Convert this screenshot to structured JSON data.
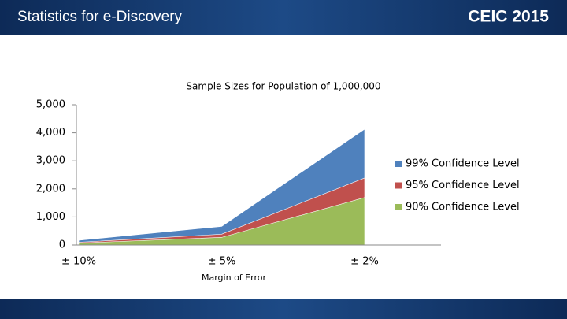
{
  "header": {
    "title": "Statistics for e-Discovery",
    "logo": "CEIC 2015"
  },
  "chart_data": {
    "type": "area",
    "title": "Sample Sizes for Population of 1,000,000",
    "x_label": "Margin of Error",
    "categories": [
      "± 10%",
      "± 5%",
      "± 2%"
    ],
    "series": [
      {
        "name": "99% Confidence Level",
        "color": "#4f81bd",
        "values": [
          166,
          663,
          4130
        ]
      },
      {
        "name": "95% Confidence Level",
        "color": "#c0504d",
        "values": [
          96,
          384,
          2390
        ]
      },
      {
        "name": "90% Confidence Level",
        "color": "#9bbb59",
        "values": [
          68,
          271,
          1691
        ]
      }
    ],
    "ylim": [
      0,
      5000
    ],
    "yticks": [
      0,
      {
        "value": 1000,
        "label": "1,000"
      },
      {
        "value": 2000,
        "label": "2,000"
      },
      {
        "value": 3000,
        "label": "3,000"
      },
      {
        "value": 4000,
        "label": "4,000"
      },
      {
        "value": 5000,
        "label": "5,000"
      }
    ],
    "grid": false,
    "legend": "right"
  }
}
